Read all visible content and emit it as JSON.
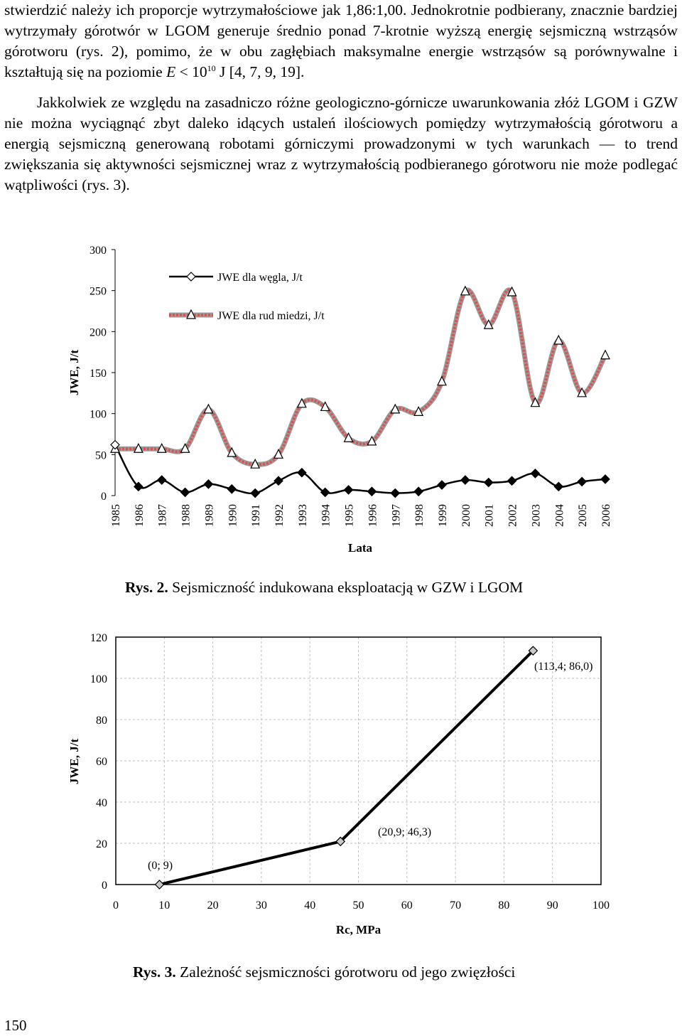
{
  "paragraph1": {
    "part1": "stwierdzić należy ich proporcje wytrzymałościowe jak 1,86:1,00. Jednokrotnie podbierany, znacznie bardziej wytrzymały górotwór w LGOM generuje średnio ponad 7-krotnie wyższą energię sejsmiczną wstrząsów górotworu (rys. 2), pomimo, że w obu zagłębiach maksymalne energie wstrząsów są porównywalne i kształtują się na poziomie ",
    "e_symbol": "E",
    "part2": " < 10",
    "exponent": "10",
    "part3": " J [4, 7, 9, 19]."
  },
  "paragraph2": "Jakkolwiek ze względu na zasadniczo różne geologiczno-górnicze uwarunkowania złóż LGOM i GZW nie można wyciągnąć zbyt daleko idących ustaleń ilościowych pomiędzy wytrzymałością górotworu a energią sejsmiczną generowaną robotami górniczymi prowadzonymi w tych warunkach — to trend zwiększania się aktywności sejsmicznej wraz z wytrzymałością podbieranego górotworu nie może podlegać wątpliwości (rys. 3).",
  "figure2": {
    "caption_label": "Rys. 2.",
    "caption_text": " Sejsmiczność indukowana eksploatacją w GZW i LGOM"
  },
  "figure3": {
    "caption_label": "Rys. 3.",
    "caption_text": " Zależność sejsmiczności górotworu od jego zwięzłości"
  },
  "page_number": "150",
  "colors": {
    "coal_line": "#000000",
    "ore_line": "#d9534f",
    "ore_outline": "#9b9b9b",
    "grid": "#bfbfbf",
    "marker_fill": "#c8c8c8"
  },
  "chart_data": [
    {
      "type": "line",
      "title": "",
      "xlabel": "Lata",
      "ylabel": "JWE, J/t",
      "ylim": [
        0,
        300
      ],
      "yticks": [
        0,
        50,
        100,
        150,
        200,
        250,
        300
      ],
      "categories": [
        "1985",
        "1986",
        "1987",
        "1988",
        "1989",
        "1990",
        "1991",
        "1992",
        "1993",
        "1994",
        "1995",
        "1996",
        "1997",
        "1998",
        "1999",
        "2000",
        "2001",
        "2002",
        "2003",
        "2004",
        "2005",
        "2006"
      ],
      "legend_position": "top-left",
      "grid": false,
      "series": [
        {
          "name": "JWE dla węgla, J/t",
          "marker": "diamond",
          "values": [
            62,
            11,
            19,
            4,
            14,
            8,
            3,
            18,
            28,
            4,
            7,
            5,
            3,
            5,
            13,
            19,
            16,
            18,
            27,
            11,
            17,
            20
          ]
        },
        {
          "name": "JWE dla rud miedzi, J/t",
          "marker": "triangle",
          "values": [
            57,
            57,
            57,
            57,
            105,
            52,
            38,
            50,
            112,
            108,
            70,
            66,
            105,
            102,
            139,
            249,
            208,
            248,
            113,
            189,
            125,
            171
          ]
        }
      ]
    },
    {
      "type": "line",
      "title": "",
      "xlabel": "Rc, MPa",
      "ylabel": "JWE, J/t",
      "xlim": [
        0,
        100
      ],
      "ylim": [
        0,
        120
      ],
      "xticks": [
        0,
        10,
        20,
        30,
        40,
        50,
        60,
        70,
        80,
        90,
        100
      ],
      "yticks": [
        0,
        20,
        40,
        60,
        80,
        100,
        120
      ],
      "grid": true,
      "series": [
        {
          "name": "",
          "marker": "diamond",
          "x": [
            9,
            46.3,
            86.0
          ],
          "y": [
            0,
            20.9,
            113.4
          ]
        }
      ],
      "annotations": [
        "(0; 9)",
        "(20,9; 46,3)",
        "(113,4; 86,0)"
      ]
    }
  ]
}
